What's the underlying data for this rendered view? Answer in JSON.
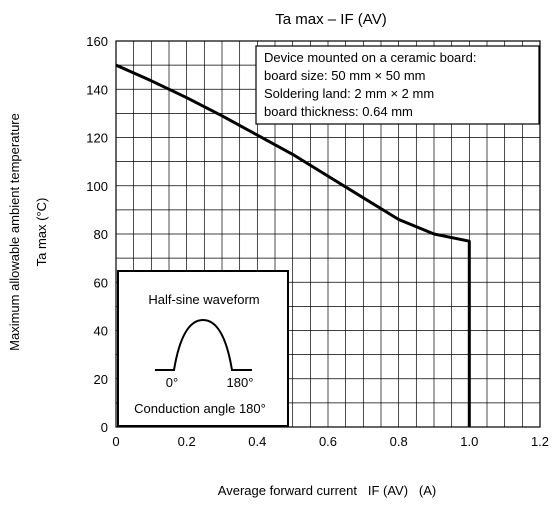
{
  "chart_data": {
    "type": "line",
    "title": "Ta max – IF (AV)",
    "xlabel": "Average forward current   IF (AV)   (A)",
    "ylabel_line1": "Maximum allowable ambient temperature",
    "ylabel_line2": "Ta max   (°C)",
    "xlim": [
      0,
      1.2
    ],
    "ylim": [
      0,
      160
    ],
    "x_ticks": [
      "0",
      "0.2",
      "0.4",
      "0.6",
      "0.8",
      "1.0",
      "1.2"
    ],
    "y_ticks": [
      "0",
      "20",
      "40",
      "60",
      "80",
      "100",
      "120",
      "140",
      "160"
    ],
    "grid": true,
    "series": [
      {
        "x": [
          0,
          0.1,
          0.2,
          0.3,
          0.4,
          0.5,
          0.6,
          0.7,
          0.8,
          0.9,
          1.0,
          1.0
        ],
        "y": [
          150,
          143.5,
          136.5,
          129,
          121,
          113,
          104,
          95,
          86,
          80,
          77,
          0
        ]
      }
    ],
    "annotation_box": {
      "lines": [
        "Device mounted on a ceramic board:",
        "board size: 50 mm × 50 mm",
        "Soldering land: 2 mm × 2 mm",
        "board thickness: 0.64 mm"
      ]
    },
    "waveform_inset": {
      "title": "Half-sine waveform",
      "label_start": "0°",
      "label_end": "180°",
      "caption": "Conduction angle 180°"
    }
  }
}
